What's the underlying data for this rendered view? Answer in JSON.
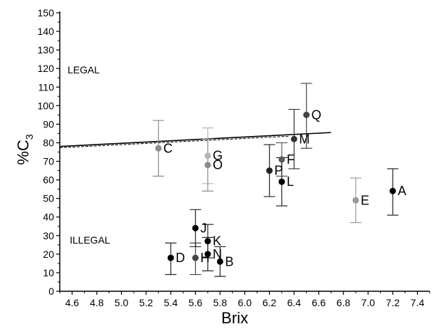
{
  "chart_data": {
    "type": "scatter",
    "xlabel": "Brix",
    "ylabel_main": "%C",
    "ylabel_sub": "3",
    "xlim": [
      4.5,
      7.5
    ],
    "ylim": [
      0,
      150
    ],
    "x_ticks": [
      4.6,
      4.8,
      5.0,
      5.2,
      5.4,
      5.6,
      5.8,
      6.0,
      6.2,
      6.4,
      6.6,
      6.8,
      7.0,
      7.2,
      7.4
    ],
    "x_tick_labels": [
      "4.6",
      "4.8",
      "5.0",
      "5.2",
      "5.4",
      "5.6",
      "5.8",
      "6.0",
      "6.2",
      "6.4",
      "6.6",
      "6.8",
      "7.0",
      "7.2",
      "7.4"
    ],
    "y_ticks": [
      0,
      10,
      20,
      30,
      40,
      50,
      60,
      70,
      80,
      90,
      100,
      110,
      120,
      130,
      140,
      150
    ],
    "y_tick_labels": [
      "0",
      "10",
      "20",
      "30",
      "40",
      "50",
      "60",
      "70",
      "80",
      "90",
      "100",
      "110",
      "120",
      "130",
      "140",
      "150"
    ],
    "annotations": {
      "legal": "LEGAL",
      "illegal": "ILLEGAL"
    },
    "threshold_line": {
      "x": [
        4.5,
        6.7
      ],
      "y": [
        78,
        85.5
      ],
      "color": "#000000"
    },
    "points": [
      {
        "label": "A",
        "x": 7.2,
        "y": 54,
        "err_low": 41,
        "err_high": 66,
        "color": "#000000"
      },
      {
        "label": "B",
        "x": 5.8,
        "y": 16,
        "err_low": 8,
        "err_high": 24,
        "color": "#000000"
      },
      {
        "label": "C",
        "x": 5.3,
        "y": 77,
        "err_low": 62,
        "err_high": 92,
        "color": "#8c8c8c"
      },
      {
        "label": "D",
        "x": 5.4,
        "y": 18,
        "err_low": 9,
        "err_high": 26,
        "color": "#000000"
      },
      {
        "label": "E",
        "x": 6.9,
        "y": 49,
        "err_low": 37,
        "err_high": 61,
        "color": "#9a9a9a"
      },
      {
        "label": "F",
        "x": 6.3,
        "y": 71,
        "err_low": 62,
        "err_high": 80,
        "color": "#5a5a5a"
      },
      {
        "label": "G",
        "x": 5.7,
        "y": 73,
        "err_low": 58,
        "err_high": 88,
        "color": "#b5b5b5"
      },
      {
        "label": "H",
        "x": 5.6,
        "y": 18,
        "err_low": 9,
        "err_high": 26,
        "color": "#444444"
      },
      {
        "label": "J",
        "x": 5.6,
        "y": 34,
        "err_low": 24,
        "err_high": 44,
        "color": "#000000"
      },
      {
        "label": "K",
        "x": 5.7,
        "y": 27,
        "err_low": 18,
        "err_high": 36,
        "color": "#000000"
      },
      {
        "label": "L",
        "x": 6.3,
        "y": 59,
        "err_low": 46,
        "err_high": 72,
        "color": "#000000"
      },
      {
        "label": "M",
        "x": 6.4,
        "y": 82,
        "err_low": 66,
        "err_high": 98,
        "color": "#333333"
      },
      {
        "label": "N",
        "x": 5.7,
        "y": 20,
        "err_low": 11,
        "err_high": 29,
        "color": "#000000"
      },
      {
        "label": "O",
        "x": 5.7,
        "y": 68,
        "err_low": 54,
        "err_high": 82,
        "color": "#8c8c8c"
      },
      {
        "label": "P",
        "x": 6.2,
        "y": 65,
        "err_low": 51,
        "err_high": 79,
        "color": "#222222"
      },
      {
        "label": "Q",
        "x": 6.5,
        "y": 95,
        "err_low": 77,
        "err_high": 112,
        "color": "#444444"
      }
    ],
    "grid": false,
    "legend": "none"
  }
}
